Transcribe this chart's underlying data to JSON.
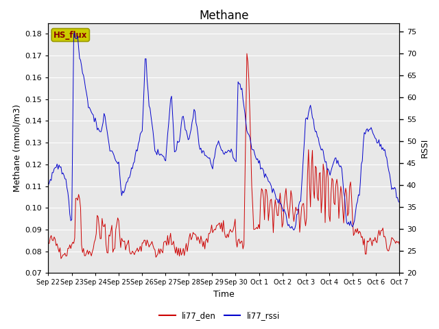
{
  "title": "Methane",
  "ylabel_left": "Methane (mmol/m3)",
  "ylabel_right": "RSSI",
  "xlabel": "Time",
  "ylim_left": [
    0.07,
    0.185
  ],
  "ylim_right": [
    20,
    77
  ],
  "yticks_left": [
    0.07,
    0.08,
    0.09,
    0.1,
    0.11,
    0.12,
    0.13,
    0.14,
    0.15,
    0.16,
    0.17,
    0.18
  ],
  "yticks_right": [
    20,
    25,
    30,
    35,
    40,
    45,
    50,
    55,
    60,
    65,
    70,
    75
  ],
  "xtick_labels": [
    "Sep 22",
    "Sep 23",
    "Sep 24",
    "Sep 25",
    "Sep 26",
    "Sep 27",
    "Sep 28",
    "Sep 29",
    "Sep 30",
    "Oct 1",
    "Oct 2",
    "Oct 3",
    "Oct 4",
    "Oct 5",
    "Oct 6",
    "Oct 7"
  ],
  "color_red": "#cc0000",
  "color_blue": "#0000cc",
  "bg_color": "#e8e8e8",
  "legend_box_color": "#cccc00",
  "legend_box_text": "HS_flux",
  "legend_box_text_color": "#880000",
  "legend_entries": [
    "li77_den",
    "li77_rssi"
  ],
  "grid_color": "#ffffff",
  "title_fontsize": 12,
  "axis_label_fontsize": 9,
  "tick_fontsize": 8
}
